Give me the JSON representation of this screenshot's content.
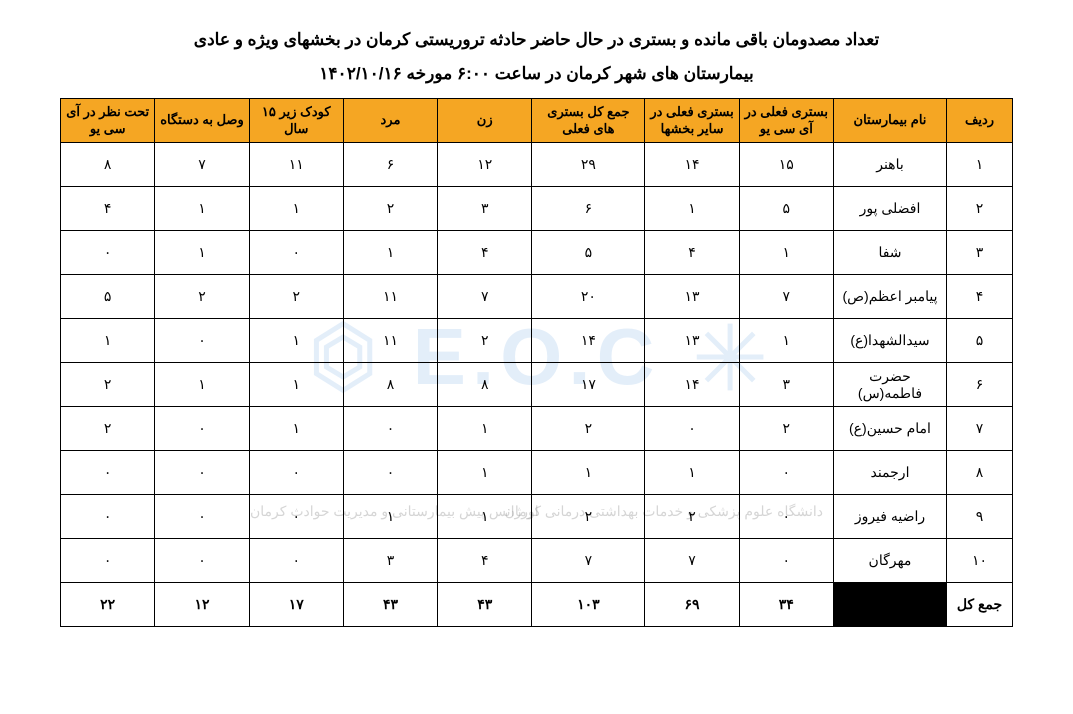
{
  "title1": "تعداد مصدومان باقی مانده و بستری در حال حاضر حادثه تروریستی کرمان در بخشهای ویژه و عادی",
  "title2": "بیمارستان های شهر کرمان در ساعت ۶:۰۰ مورخه ۱۴۰۲/۱۰/۱۶",
  "table": {
    "columns": [
      {
        "key": "row_no",
        "label": "ردیف"
      },
      {
        "key": "hospital",
        "label": "نام بیمارستان"
      },
      {
        "key": "icu",
        "label": "بستری فعلی در آی سی یو"
      },
      {
        "key": "other_wards",
        "label": "بستری فعلی در سایر بخشها"
      },
      {
        "key": "total_admitted",
        "label": "جمع کل بستری های فعلی"
      },
      {
        "key": "female",
        "label": "زن"
      },
      {
        "key": "male",
        "label": "مرد"
      },
      {
        "key": "child_u15",
        "label": "کودک زیر ۱۵ سال"
      },
      {
        "key": "on_device",
        "label": "وصل به دستگاه"
      },
      {
        "key": "icu_observe",
        "label": "تحت نظر در آی سی یو"
      }
    ],
    "rows": [
      {
        "row_no": "۱",
        "hospital": "باهنر",
        "icu": "۱۵",
        "other_wards": "۱۴",
        "total_admitted": "۲۹",
        "female": "۱۲",
        "male": "۶",
        "child_u15": "۱۱",
        "on_device": "۷",
        "icu_observe": "۸"
      },
      {
        "row_no": "۲",
        "hospital": "افضلی پور",
        "icu": "۵",
        "other_wards": "۱",
        "total_admitted": "۶",
        "female": "۳",
        "male": "۲",
        "child_u15": "۱",
        "on_device": "۱",
        "icu_observe": "۴"
      },
      {
        "row_no": "۳",
        "hospital": "شفا",
        "icu": "۱",
        "other_wards": "۴",
        "total_admitted": "۵",
        "female": "۴",
        "male": "۱",
        "child_u15": "۰",
        "on_device": "۱",
        "icu_observe": "۰"
      },
      {
        "row_no": "۴",
        "hospital": "پیامبر اعظم(ص)",
        "icu": "۷",
        "other_wards": "۱۳",
        "total_admitted": "۲۰",
        "female": "۷",
        "male": "۱۱",
        "child_u15": "۲",
        "on_device": "۲",
        "icu_observe": "۵"
      },
      {
        "row_no": "۵",
        "hospital": "سیدالشهدا(ع)",
        "icu": "۱",
        "other_wards": "۱۳",
        "total_admitted": "۱۴",
        "female": "۲",
        "male": "۱۱",
        "child_u15": "۱",
        "on_device": "۰",
        "icu_observe": "۱"
      },
      {
        "row_no": "۶",
        "hospital": "حضرت فاطمه(س)",
        "icu": "۳",
        "other_wards": "۱۴",
        "total_admitted": "۱۷",
        "female": "۸",
        "male": "۸",
        "child_u15": "۱",
        "on_device": "۱",
        "icu_observe": "۲"
      },
      {
        "row_no": "۷",
        "hospital": "امام حسین(ع)",
        "icu": "۲",
        "other_wards": "۰",
        "total_admitted": "۲",
        "female": "۱",
        "male": "۰",
        "child_u15": "۱",
        "on_device": "۰",
        "icu_observe": "۲"
      },
      {
        "row_no": "۸",
        "hospital": "ارجمند",
        "icu": "۰",
        "other_wards": "۱",
        "total_admitted": "۱",
        "female": "۱",
        "male": "۰",
        "child_u15": "۰",
        "on_device": "۰",
        "icu_observe": "۰"
      },
      {
        "row_no": "۹",
        "hospital": "راضیه فیروز",
        "icu": "۰",
        "other_wards": "۲",
        "total_admitted": "۲",
        "female": "۱",
        "male": "۱",
        "child_u15": "۰",
        "on_device": "۰",
        "icu_observe": "۰"
      },
      {
        "row_no": "۱۰",
        "hospital": "مهرگان",
        "icu": "۰",
        "other_wards": "۷",
        "total_admitted": "۷",
        "female": "۴",
        "male": "۳",
        "child_u15": "۰",
        "on_device": "۰",
        "icu_observe": "۰"
      }
    ],
    "total": {
      "label": "جمع کل",
      "hospital_black": true,
      "icu": "۳۴",
      "other_wards": "۶۹",
      "total_admitted": "۱۰۳",
      "female": "۴۳",
      "male": "۴۳",
      "child_u15": "۱۷",
      "on_device": "۱۲",
      "icu_observe": "۲۲"
    }
  },
  "watermark": {
    "letters": "E.O.C",
    "sub_right": "دانشگاه علوم پزشکی\nو خدمات بهداشتی درمانی کرمان",
    "sub_left": "اورژانس پیش بیمارستانی\nو مدیریت حوادث کرمان"
  },
  "colors": {
    "header_bg": "#f5a623",
    "border": "#000000",
    "wm_color": "#4a90d9",
    "background": "#ffffff"
  }
}
